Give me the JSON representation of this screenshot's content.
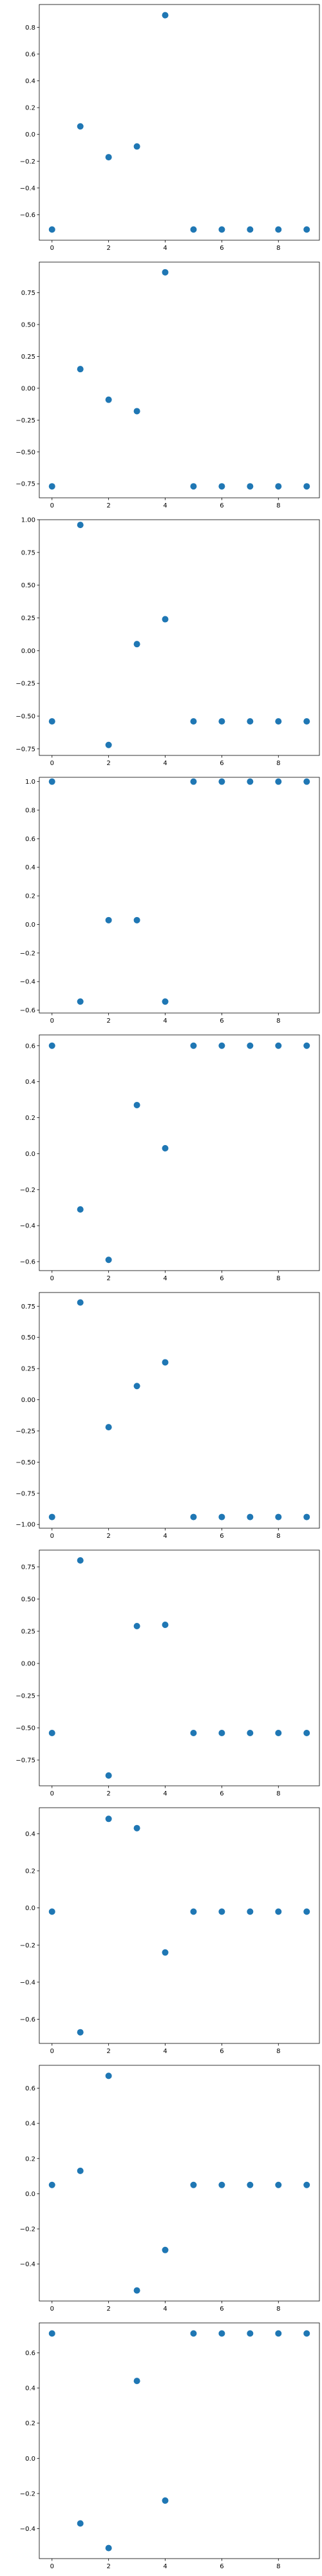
{
  "figure": {
    "marker_color": "#1f77b4",
    "xticks": [
      0,
      2,
      4,
      6,
      8
    ],
    "xlim": [
      -0.45,
      9.45
    ]
  },
  "chart_data": [
    {
      "type": "scatter",
      "x": [
        0,
        1,
        2,
        3,
        4,
        5,
        6,
        7,
        8,
        9
      ],
      "y": [
        -0.71,
        0.06,
        -0.17,
        -0.09,
        0.89,
        -0.71,
        -0.71,
        -0.71,
        -0.71,
        -0.71
      ],
      "ylim": [
        -0.79,
        0.97
      ],
      "yticks": [
        {
          "value": 0.8,
          "label": "0.8"
        },
        {
          "value": 0.6,
          "label": "0.6"
        },
        {
          "value": 0.4,
          "label": "0.4"
        },
        {
          "value": 0.2,
          "label": "0.2"
        },
        {
          "value": 0.0,
          "label": "0.0"
        },
        {
          "value": -0.2,
          "label": "−0.2"
        },
        {
          "value": -0.4,
          "label": "−0.4"
        },
        {
          "value": -0.6,
          "label": "−0.6"
        }
      ]
    },
    {
      "type": "scatter",
      "x": [
        0,
        1,
        2,
        3,
        4,
        5,
        6,
        7,
        8,
        9
      ],
      "y": [
        -0.77,
        0.15,
        -0.09,
        -0.18,
        0.91,
        -0.77,
        -0.77,
        -0.77,
        -0.77,
        -0.77
      ],
      "ylim": [
        -0.86,
        0.99
      ],
      "yticks": [
        {
          "value": 0.75,
          "label": "0.75"
        },
        {
          "value": 0.5,
          "label": "0.50"
        },
        {
          "value": 0.25,
          "label": "0.25"
        },
        {
          "value": 0.0,
          "label": "0.00"
        },
        {
          "value": -0.25,
          "label": "−0.25"
        },
        {
          "value": -0.5,
          "label": "−0.50"
        },
        {
          "value": -0.75,
          "label": "−0.75"
        }
      ]
    },
    {
      "type": "scatter",
      "x": [
        0,
        1,
        2,
        3,
        4,
        5,
        6,
        7,
        8,
        9
      ],
      "y": [
        -0.54,
        0.96,
        -0.72,
        0.05,
        0.24,
        -0.54,
        -0.54,
        -0.54,
        -0.54,
        -0.54
      ],
      "ylim": [
        -0.8,
        1.0
      ],
      "yticks": [
        {
          "value": 1.0,
          "label": "1.00"
        },
        {
          "value": 0.75,
          "label": "0.75"
        },
        {
          "value": 0.5,
          "label": "0.50"
        },
        {
          "value": 0.25,
          "label": "0.25"
        },
        {
          "value": 0.0,
          "label": "0.00"
        },
        {
          "value": -0.25,
          "label": "−0.25"
        },
        {
          "value": -0.5,
          "label": "−0.50"
        },
        {
          "value": -0.75,
          "label": "−0.75"
        }
      ]
    },
    {
      "type": "scatter",
      "x": [
        0,
        1,
        2,
        3,
        4,
        5,
        6,
        7,
        8,
        9
      ],
      "y": [
        1.0,
        -0.54,
        0.03,
        0.03,
        -0.54,
        1.0,
        1.0,
        1.0,
        1.0,
        1.0
      ],
      "ylim": [
        -0.62,
        1.03
      ],
      "yticks": [
        {
          "value": 1.0,
          "label": "1.0"
        },
        {
          "value": 0.8,
          "label": "0.8"
        },
        {
          "value": 0.6,
          "label": "0.6"
        },
        {
          "value": 0.4,
          "label": "0.4"
        },
        {
          "value": 0.2,
          "label": "0.2"
        },
        {
          "value": 0.0,
          "label": "0.0"
        },
        {
          "value": -0.2,
          "label": "−0.2"
        },
        {
          "value": -0.4,
          "label": "−0.4"
        },
        {
          "value": -0.6,
          "label": "−0.6"
        }
      ]
    },
    {
      "type": "scatter",
      "x": [
        0,
        1,
        2,
        3,
        4,
        5,
        6,
        7,
        8,
        9
      ],
      "y": [
        0.6,
        -0.31,
        -0.59,
        0.27,
        0.03,
        0.6,
        0.6,
        0.6,
        0.6,
        0.6
      ],
      "ylim": [
        -0.65,
        0.66
      ],
      "yticks": [
        {
          "value": 0.6,
          "label": "0.6"
        },
        {
          "value": 0.4,
          "label": "0.4"
        },
        {
          "value": 0.2,
          "label": "0.2"
        },
        {
          "value": 0.0,
          "label": "0.0"
        },
        {
          "value": -0.2,
          "label": "−0.2"
        },
        {
          "value": -0.4,
          "label": "−0.4"
        },
        {
          "value": -0.6,
          "label": "−0.6"
        }
      ]
    },
    {
      "type": "scatter",
      "x": [
        0,
        1,
        2,
        3,
        4,
        5,
        6,
        7,
        8,
        9
      ],
      "y": [
        -0.94,
        0.78,
        -0.22,
        0.11,
        0.3,
        -0.94,
        -0.94,
        -0.94,
        -0.94,
        -0.94
      ],
      "ylim": [
        -1.03,
        0.86
      ],
      "yticks": [
        {
          "value": 0.75,
          "label": "0.75"
        },
        {
          "value": 0.5,
          "label": "0.50"
        },
        {
          "value": 0.25,
          "label": "0.25"
        },
        {
          "value": 0.0,
          "label": "0.00"
        },
        {
          "value": -0.25,
          "label": "−0.25"
        },
        {
          "value": -0.5,
          "label": "−0.50"
        },
        {
          "value": -0.75,
          "label": "−0.75"
        },
        {
          "value": -1.0,
          "label": "−1.00"
        }
      ]
    },
    {
      "type": "scatter",
      "x": [
        0,
        1,
        2,
        3,
        4,
        5,
        6,
        7,
        8,
        9
      ],
      "y": [
        -0.54,
        0.8,
        -0.87,
        0.29,
        0.3,
        -0.54,
        -0.54,
        -0.54,
        -0.54,
        -0.54
      ],
      "ylim": [
        -0.95,
        0.88
      ],
      "yticks": [
        {
          "value": 0.75,
          "label": "0.75"
        },
        {
          "value": 0.5,
          "label": "0.50"
        },
        {
          "value": 0.25,
          "label": "0.25"
        },
        {
          "value": 0.0,
          "label": "0.00"
        },
        {
          "value": -0.25,
          "label": "−0.25"
        },
        {
          "value": -0.5,
          "label": "−0.50"
        },
        {
          "value": -0.75,
          "label": "−0.75"
        }
      ]
    },
    {
      "type": "scatter",
      "x": [
        0,
        1,
        2,
        3,
        4,
        5,
        6,
        7,
        8,
        9
      ],
      "y": [
        -0.02,
        -0.67,
        0.48,
        0.43,
        -0.24,
        -0.02,
        -0.02,
        -0.02,
        -0.02,
        -0.02
      ],
      "ylim": [
        -0.73,
        0.54
      ],
      "yticks": [
        {
          "value": 0.4,
          "label": "0.4"
        },
        {
          "value": 0.2,
          "label": "0.2"
        },
        {
          "value": 0.0,
          "label": "0.0"
        },
        {
          "value": -0.2,
          "label": "−0.2"
        },
        {
          "value": -0.4,
          "label": "−0.4"
        },
        {
          "value": -0.6,
          "label": "−0.6"
        }
      ]
    },
    {
      "type": "scatter",
      "x": [
        0,
        1,
        2,
        3,
        4,
        5,
        6,
        7,
        8,
        9
      ],
      "y": [
        0.05,
        0.13,
        0.67,
        -0.55,
        -0.32,
        0.05,
        0.05,
        0.05,
        0.05,
        0.05
      ],
      "ylim": [
        -0.61,
        0.73
      ],
      "yticks": [
        {
          "value": 0.6,
          "label": "0.6"
        },
        {
          "value": 0.4,
          "label": "0.4"
        },
        {
          "value": 0.2,
          "label": "0.2"
        },
        {
          "value": 0.0,
          "label": "0.0"
        },
        {
          "value": -0.2,
          "label": "−0.2"
        },
        {
          "value": -0.4,
          "label": "−0.4"
        }
      ]
    },
    {
      "type": "scatter",
      "x": [
        0,
        1,
        2,
        3,
        4,
        5,
        6,
        7,
        8,
        9
      ],
      "y": [
        0.71,
        -0.37,
        -0.51,
        0.44,
        -0.24,
        0.71,
        0.71,
        0.71,
        0.71,
        0.71
      ],
      "ylim": [
        -0.57,
        0.77
      ],
      "yticks": [
        {
          "value": 0.6,
          "label": "0.6"
        },
        {
          "value": 0.4,
          "label": "0.4"
        },
        {
          "value": 0.2,
          "label": "0.2"
        },
        {
          "value": 0.0,
          "label": "0.0"
        },
        {
          "value": -0.2,
          "label": "−0.2"
        },
        {
          "value": -0.4,
          "label": "−0.4"
        }
      ]
    }
  ]
}
